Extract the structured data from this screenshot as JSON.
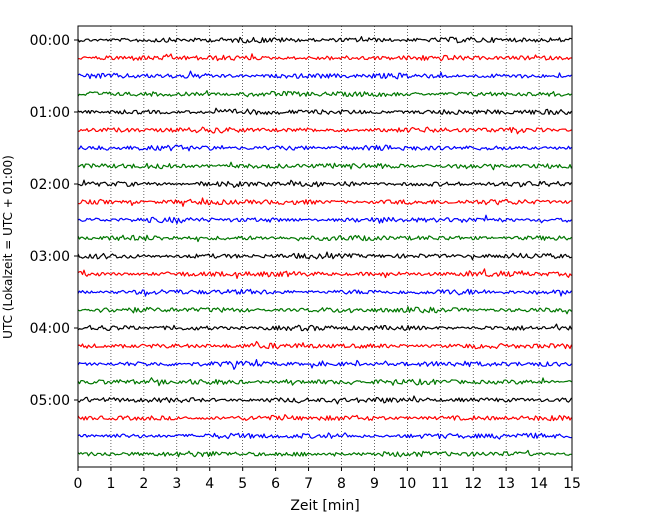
{
  "chart_data": {
    "type": "line",
    "title": "",
    "xlabel": "Zeit  [min]",
    "ylabel": "UTC (Lokalzeit = UTC + 01:00)",
    "xlim": [
      0,
      15
    ],
    "x_ticks": [
      "0",
      "1",
      "2",
      "3",
      "4",
      "5",
      "6",
      "7",
      "8",
      "9",
      "10",
      "11",
      "12",
      "13",
      "14",
      "15"
    ],
    "y_ticks": [
      "00:00",
      "01:00",
      "02:00",
      "03:00",
      "04:00",
      "05:00"
    ],
    "grid": "vertical dotted",
    "trace_interval_minutes": 15,
    "trace_count": 24,
    "trace_colors": [
      "#000000",
      "#ff0000",
      "#0000ff",
      "#007700"
    ],
    "series": [
      {
        "start": "00:00",
        "color": "#000000"
      },
      {
        "start": "00:15",
        "color": "#ff0000"
      },
      {
        "start": "00:30",
        "color": "#0000ff"
      },
      {
        "start": "00:45",
        "color": "#007700"
      },
      {
        "start": "01:00",
        "color": "#000000"
      },
      {
        "start": "01:15",
        "color": "#ff0000"
      },
      {
        "start": "01:30",
        "color": "#0000ff"
      },
      {
        "start": "01:45",
        "color": "#007700"
      },
      {
        "start": "02:00",
        "color": "#000000"
      },
      {
        "start": "02:15",
        "color": "#ff0000"
      },
      {
        "start": "02:30",
        "color": "#0000ff"
      },
      {
        "start": "02:45",
        "color": "#007700"
      },
      {
        "start": "03:00",
        "color": "#000000"
      },
      {
        "start": "03:15",
        "color": "#ff0000"
      },
      {
        "start": "03:30",
        "color": "#0000ff"
      },
      {
        "start": "03:45",
        "color": "#007700"
      },
      {
        "start": "04:00",
        "color": "#000000"
      },
      {
        "start": "04:15",
        "color": "#ff0000"
      },
      {
        "start": "04:30",
        "color": "#0000ff"
      },
      {
        "start": "04:45",
        "color": "#007700"
      },
      {
        "start": "05:00",
        "color": "#000000"
      },
      {
        "start": "05:15",
        "color": "#ff0000"
      },
      {
        "start": "05:30",
        "color": "#0000ff"
      },
      {
        "start": "05:45",
        "color": "#007700"
      }
    ]
  }
}
